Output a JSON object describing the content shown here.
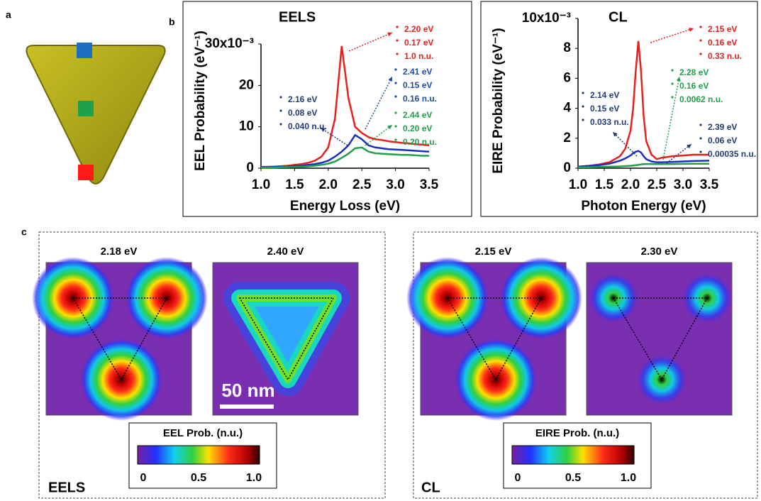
{
  "panel_labels": [
    "a",
    "b",
    "c"
  ],
  "chart_data": [
    {
      "type": "line",
      "title": "EELS",
      "x_label": "Energy Loss (eV)",
      "y_label": "EEL Probability (eV⁻¹)",
      "x": [
        1.0,
        1.1,
        1.2,
        1.3,
        1.4,
        1.5,
        1.6,
        1.7,
        1.8,
        1.9,
        2.0,
        2.1,
        2.2,
        2.3,
        2.4,
        2.5,
        2.6,
        2.7,
        2.8,
        2.9,
        3.0,
        3.1,
        3.2,
        3.3,
        3.4,
        3.5
      ],
      "series": [
        {
          "color": "#e8201c",
          "values": [
            0.3,
            0.35,
            0.4,
            0.5,
            0.6,
            0.8,
            1.0,
            1.3,
            1.8,
            2.8,
            5,
            12,
            29.5,
            17,
            10,
            8.5,
            7.5,
            7,
            6.8,
            6.5,
            6.3,
            6.1,
            6,
            5.8,
            5.7,
            5.5
          ]
        },
        {
          "color": "#1a2fbf",
          "values": [
            0.2,
            0.25,
            0.3,
            0.35,
            0.4,
            0.5,
            0.6,
            0.8,
            1.0,
            1.3,
            1.8,
            2.8,
            4,
            5.5,
            8,
            7,
            5.5,
            5,
            4.8,
            4.6,
            4.5,
            4.4,
            4.3,
            4.2,
            4.1,
            4.0
          ]
        },
        {
          "color": "#1fa04a",
          "values": [
            0.1,
            0.1,
            0.15,
            0.2,
            0.25,
            0.3,
            0.35,
            0.45,
            0.6,
            0.8,
            1.1,
            1.6,
            2.5,
            3.5,
            4.8,
            5.0,
            4,
            3.6,
            3.5,
            3.4,
            3.3,
            3.2,
            3.2,
            3.1,
            3.0,
            3.0
          ]
        }
      ],
      "xlim": [
        1.0,
        3.5
      ],
      "xticks": [
        {
          "value": 1,
          "label": "1.0"
        },
        1.5,
        {
          "value": 2,
          "label": "2.0"
        },
        2.5,
        {
          "value": 3,
          "label": "3.0"
        },
        3.5
      ],
      "ylim": [
        0,
        30
      ],
      "yticks": [
        0,
        10,
        20,
        {
          "value": 30,
          "label": "30x10⁻³"
        }
      ],
      "annotations": [
        {
          "color": "#e8201c",
          "lines": [
            "2.20 eV",
            "0.17 eV",
            "1.0 n.u."
          ]
        },
        {
          "color": "#1f4f9a",
          "lines": [
            "2.41 eV",
            "0.15 eV",
            "0.16 n.u."
          ]
        },
        {
          "color": "#1f3b7a",
          "lines": [
            "2.16 eV",
            "0.08 eV",
            "0.040 n.u."
          ]
        },
        {
          "color": "#1fa04a",
          "lines": [
            "2.44 eV",
            "0.20 eV",
            "0.20 n.u."
          ]
        }
      ]
    },
    {
      "type": "line",
      "title": "CL",
      "x_label": "Photon Energy (eV)",
      "y_label": "EIRE Probability (eV⁻¹)",
      "x": [
        1.0,
        1.2,
        1.4,
        1.6,
        1.8,
        1.9,
        2.0,
        2.05,
        2.1,
        2.15,
        2.2,
        2.25,
        2.3,
        2.4,
        2.5,
        2.6,
        2.8,
        3.0,
        3.2,
        3.5
      ],
      "series": [
        {
          "color": "#e8201c",
          "values": [
            0.1,
            0.15,
            0.25,
            0.4,
            0.8,
            1.3,
            2.5,
            4,
            6.5,
            8.5,
            6.5,
            3.5,
            1.8,
            0.9,
            0.6,
            0.7,
            0.8,
            0.85,
            0.9,
            0.9
          ]
        },
        {
          "color": "#1a2fbf",
          "values": [
            0.1,
            0.15,
            0.2,
            0.3,
            0.5,
            0.65,
            0.85,
            1.0,
            1.1,
            1.15,
            1.05,
            0.8,
            0.6,
            0.45,
            0.4,
            0.4,
            0.42,
            0.45,
            0.48,
            0.5
          ]
        },
        {
          "color": "#1fa04a",
          "values": [
            0.05,
            0.06,
            0.08,
            0.1,
            0.12,
            0.14,
            0.16,
            0.18,
            0.2,
            0.22,
            0.25,
            0.27,
            0.28,
            0.28,
            0.27,
            0.27,
            0.28,
            0.29,
            0.3,
            0.3
          ]
        }
      ],
      "xlim": [
        1.0,
        3.5
      ],
      "xticks": [
        {
          "value": 1,
          "label": "1.0"
        },
        1.5,
        {
          "value": 2,
          "label": "2.0"
        },
        2.5,
        {
          "value": 3,
          "label": "3.0"
        },
        3.5
      ],
      "ylim": [
        0,
        10
      ],
      "yticks": [
        0,
        2,
        4,
        6,
        8,
        {
          "value": 10,
          "label": "10x10⁻³"
        }
      ],
      "annotations": [
        {
          "color": "#e8201c",
          "lines": [
            "2.15 eV",
            "0.16 eV",
            "0.33 n.u."
          ]
        },
        {
          "color": "#1fa04a",
          "lines": [
            "2.28 eV",
            "0.16 eV",
            "0.0062 n.u."
          ]
        },
        {
          "color": "#1f3b7a",
          "lines": [
            "2.14 eV",
            "0.15 eV",
            "0.033 n.u."
          ]
        },
        {
          "color": "#1f3b7a",
          "lines": [
            "2.39 eV",
            "0.06 eV",
            "0.00035 n.u."
          ]
        }
      ]
    }
  ],
  "maps": [
    {
      "section_label": "EELS",
      "panels": [
        {
          "title": "2.18 eV"
        },
        {
          "title": "2.40 eV"
        }
      ],
      "colorbar": {
        "title": "EEL Prob. (n.u.)",
        "tick_labels": [
          "0",
          "0.5",
          "1.0"
        ]
      }
    },
    {
      "section_label": "CL",
      "panels": [
        {
          "title": "2.15 eV"
        },
        {
          "title": "2.30 eV"
        }
      ],
      "colorbar": {
        "title": "EIRE Prob. (n.u.)",
        "tick_labels": [
          "0",
          "0.5",
          "1.0"
        ]
      }
    }
  ],
  "scale_bar": "50 nm"
}
